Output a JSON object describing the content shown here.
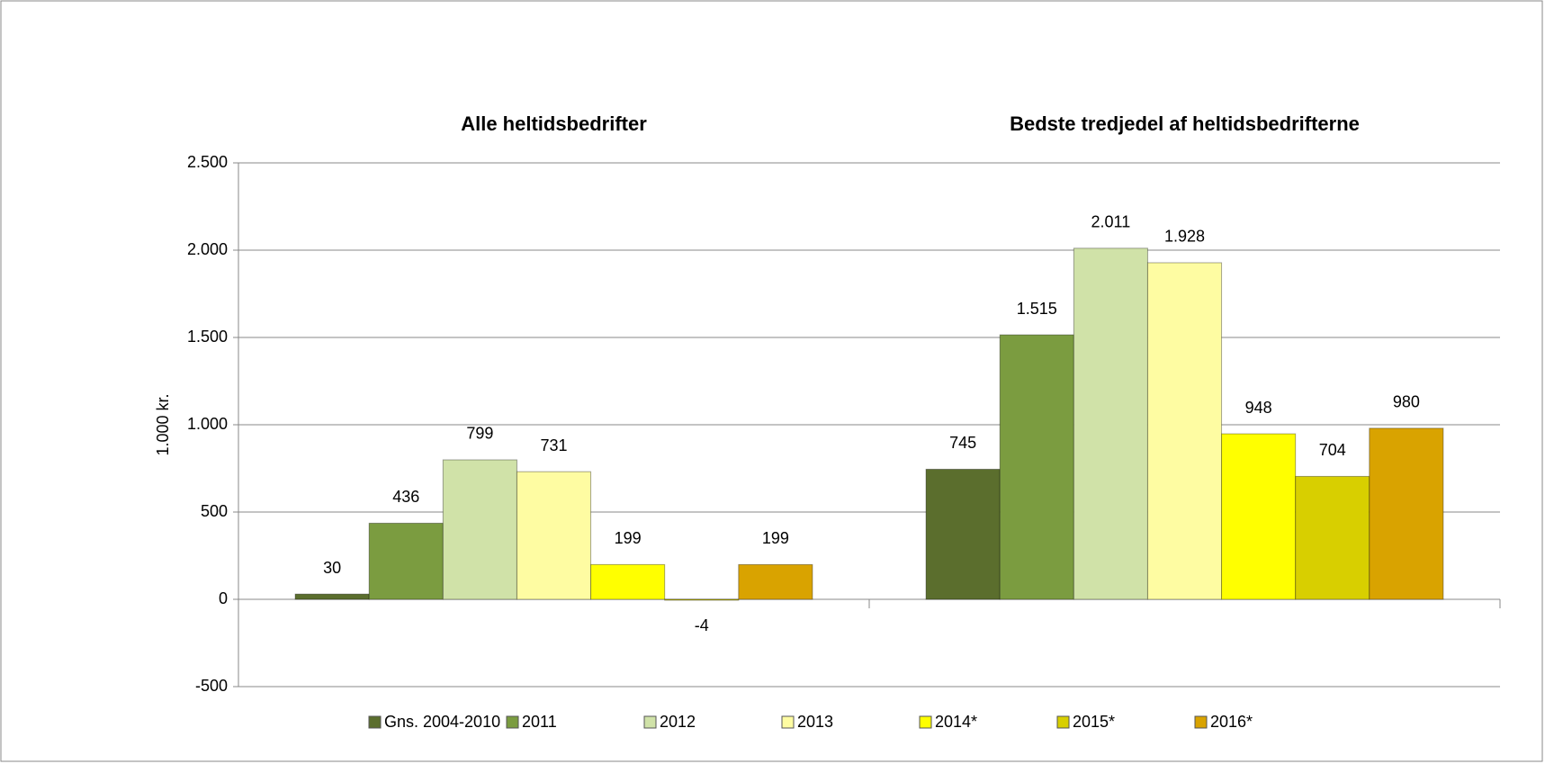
{
  "chart_data": {
    "type": "bar",
    "categories": [
      "Alle heltidsbedrifter",
      "Bedste tredjedel af heltidsbedrifterne"
    ],
    "y_label": "1.000 kr.",
    "series": [
      {
        "name": "Gns. 2004-2010",
        "color": "#5b6e2d",
        "values": [
          30,
          745
        ]
      },
      {
        "name": "2011",
        "color": "#7b9c40",
        "values": [
          436,
          1515
        ],
        "value_labels": [
          "436",
          "1.515"
        ]
      },
      {
        "name": "2012",
        "color": "#d0e2a8",
        "values": [
          799,
          2011
        ],
        "value_labels": [
          "799",
          "2.011"
        ]
      },
      {
        "name": "2013",
        "color": "#fefca2",
        "values": [
          731,
          1928
        ],
        "value_labels": [
          "731",
          "1.928"
        ]
      },
      {
        "name": "2014*",
        "color": "#ffff00",
        "values": [
          199,
          948
        ]
      },
      {
        "name": "2015*",
        "color": "#d8cf00",
        "values": [
          -4,
          704
        ]
      },
      {
        "name": "2016*",
        "color": "#d9a300",
        "values": [
          199,
          980
        ]
      }
    ],
    "ylim": [
      -500,
      2500
    ],
    "yticks": [
      -500,
      0,
      500,
      {
        "value": 1000,
        "label": "1.000"
      },
      {
        "value": 1500,
        "label": "1.500"
      },
      {
        "value": 2000,
        "label": "2.000"
      },
      {
        "value": 2500,
        "label": "2.500"
      }
    ],
    "grid": true,
    "legend": "bottom"
  }
}
